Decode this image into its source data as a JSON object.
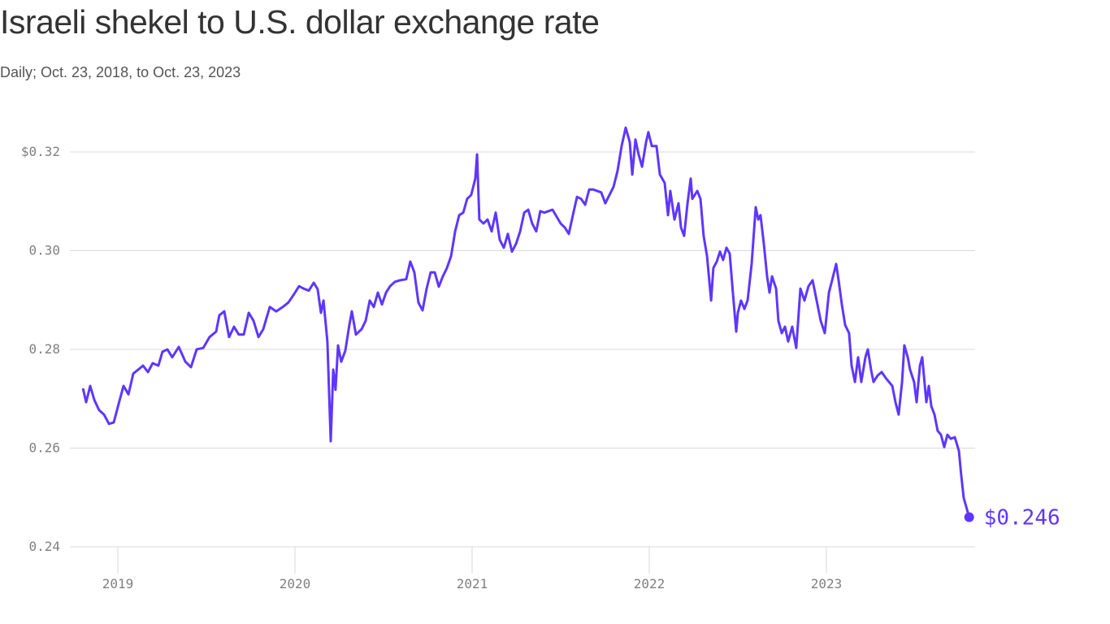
{
  "chart_data": {
    "type": "line",
    "title": "Israeli shekel to U.S. dollar exchange rate",
    "subtitle": "Daily; Oct. 23, 2018, to Oct. 23, 2023",
    "xlabel": "",
    "ylabel": "",
    "xlim": [
      2018.803,
      2023.806
    ],
    "ylim": [
      0.24,
      0.325
    ],
    "grid": true,
    "x_ticks": [
      {
        "value": 2019,
        "label": "2019"
      },
      {
        "value": 2020,
        "label": "2020"
      },
      {
        "value": 2021,
        "label": "2021"
      },
      {
        "value": 2022,
        "label": "2022"
      },
      {
        "value": 2023,
        "label": "2023"
      }
    ],
    "y_ticks": [
      {
        "value": 0.24,
        "label": "0.24"
      },
      {
        "value": 0.26,
        "label": "0.26"
      },
      {
        "value": 0.28,
        "label": "0.28"
      },
      {
        "value": 0.3,
        "label": "0.30"
      },
      {
        "value": 0.32,
        "label": "$0.32"
      }
    ],
    "line_color": "#5f36ff",
    "end_label": "$0.246",
    "series": [
      {
        "values": [
          [
            2018.803,
            0.2721
          ],
          [
            2018.821,
            0.2693
          ],
          [
            2018.844,
            0.2726
          ],
          [
            2018.867,
            0.2698
          ],
          [
            2018.894,
            0.2677
          ],
          [
            2018.922,
            0.2668
          ],
          [
            2018.95,
            0.2649
          ],
          [
            2018.977,
            0.2652
          ],
          [
            2019.005,
            0.269
          ],
          [
            2019.032,
            0.2726
          ],
          [
            2019.06,
            0.2709
          ],
          [
            2019.087,
            0.2751
          ],
          [
            2019.115,
            0.2759
          ],
          [
            2019.142,
            0.2767
          ],
          [
            2019.17,
            0.2754
          ],
          [
            2019.197,
            0.2772
          ],
          [
            2019.229,
            0.2767
          ],
          [
            2019.252,
            0.2795
          ],
          [
            2019.28,
            0.28
          ],
          [
            2019.307,
            0.2784
          ],
          [
            2019.344,
            0.2805
          ],
          [
            2019.381,
            0.2775
          ],
          [
            2019.413,
            0.2764
          ],
          [
            2019.445,
            0.28
          ],
          [
            2019.482,
            0.2803
          ],
          [
            2019.518,
            0.2825
          ],
          [
            2019.555,
            0.2836
          ],
          [
            2019.573,
            0.2869
          ],
          [
            2019.601,
            0.2877
          ],
          [
            2019.628,
            0.2825
          ],
          [
            2019.656,
            0.2846
          ],
          [
            2019.683,
            0.283
          ],
          [
            2019.711,
            0.283
          ],
          [
            2019.739,
            0.2874
          ],
          [
            2019.766,
            0.2858
          ],
          [
            2019.794,
            0.2825
          ],
          [
            2019.821,
            0.2841
          ],
          [
            2019.858,
            0.2886
          ],
          [
            2019.894,
            0.2877
          ],
          [
            2019.931,
            0.2886
          ],
          [
            2019.963,
            0.2895
          ],
          [
            2019.995,
            0.2912
          ],
          [
            2020.023,
            0.2928
          ],
          [
            2020.05,
            0.2923
          ],
          [
            2020.078,
            0.2919
          ],
          [
            2020.106,
            0.2935
          ],
          [
            2020.128,
            0.2922
          ],
          [
            2020.147,
            0.2874
          ],
          [
            2020.161,
            0.2899
          ],
          [
            2020.183,
            0.2816
          ],
          [
            2020.202,
            0.2614
          ],
          [
            2020.216,
            0.2759
          ],
          [
            2020.229,
            0.2718
          ],
          [
            2020.243,
            0.2808
          ],
          [
            2020.261,
            0.2775
          ],
          [
            2020.284,
            0.2797
          ],
          [
            2020.307,
            0.2849
          ],
          [
            2020.321,
            0.2877
          ],
          [
            2020.344,
            0.283
          ],
          [
            2020.376,
            0.2841
          ],
          [
            2020.399,
            0.2858
          ],
          [
            2020.422,
            0.2899
          ],
          [
            2020.445,
            0.2886
          ],
          [
            2020.468,
            0.2915
          ],
          [
            2020.491,
            0.2891
          ],
          [
            2020.514,
            0.2915
          ],
          [
            2020.537,
            0.2928
          ],
          [
            2020.564,
            0.2937
          ],
          [
            2020.592,
            0.294
          ],
          [
            2020.628,
            0.2942
          ],
          [
            2020.651,
            0.2978
          ],
          [
            2020.674,
            0.2956
          ],
          [
            2020.697,
            0.2895
          ],
          [
            2020.72,
            0.2879
          ],
          [
            2020.743,
            0.2923
          ],
          [
            2020.766,
            0.2956
          ],
          [
            2020.789,
            0.2956
          ],
          [
            2020.812,
            0.2927
          ],
          [
            2020.835,
            0.2948
          ],
          [
            2020.858,
            0.2965
          ],
          [
            2020.881,
            0.2989
          ],
          [
            2020.904,
            0.3039
          ],
          [
            2020.927,
            0.3072
          ],
          [
            2020.95,
            0.3077
          ],
          [
            2020.972,
            0.3105
          ],
          [
            2020.995,
            0.3113
          ],
          [
            2021.018,
            0.3146
          ],
          [
            2021.028,
            0.3195
          ],
          [
            2021.041,
            0.3063
          ],
          [
            2021.064,
            0.3055
          ],
          [
            2021.087,
            0.3063
          ],
          [
            2021.11,
            0.3039
          ],
          [
            2021.133,
            0.3077
          ],
          [
            2021.156,
            0.3022
          ],
          [
            2021.179,
            0.3006
          ],
          [
            2021.202,
            0.3034
          ],
          [
            2021.225,
            0.2998
          ],
          [
            2021.248,
            0.3014
          ],
          [
            2021.271,
            0.3039
          ],
          [
            2021.294,
            0.3077
          ],
          [
            2021.317,
            0.3083
          ],
          [
            2021.339,
            0.3055
          ],
          [
            2021.362,
            0.3039
          ],
          [
            2021.385,
            0.308
          ],
          [
            2021.408,
            0.3077
          ],
          [
            2021.454,
            0.3083
          ],
          [
            2021.5,
            0.3055
          ],
          [
            2021.523,
            0.3047
          ],
          [
            2021.546,
            0.3034
          ],
          [
            2021.569,
            0.3072
          ],
          [
            2021.592,
            0.3109
          ],
          [
            2021.615,
            0.3105
          ],
          [
            2021.638,
            0.3093
          ],
          [
            2021.661,
            0.3124
          ],
          [
            2021.683,
            0.3124
          ],
          [
            2021.729,
            0.3118
          ],
          [
            2021.752,
            0.3096
          ],
          [
            2021.775,
            0.3113
          ],
          [
            2021.798,
            0.3129
          ],
          [
            2021.821,
            0.3162
          ],
          [
            2021.844,
            0.3212
          ],
          [
            2021.867,
            0.3249
          ],
          [
            2021.89,
            0.322
          ],
          [
            2021.904,
            0.3154
          ],
          [
            2021.922,
            0.3225
          ],
          [
            2021.94,
            0.3195
          ],
          [
            2021.959,
            0.317
          ],
          [
            2021.982,
            0.322
          ],
          [
            2021.995,
            0.324
          ],
          [
            2022.014,
            0.3212
          ],
          [
            2022.041,
            0.3212
          ],
          [
            2022.06,
            0.3154
          ],
          [
            2022.087,
            0.3137
          ],
          [
            2022.106,
            0.3072
          ],
          [
            2022.119,
            0.3121
          ],
          [
            2022.142,
            0.3063
          ],
          [
            2022.165,
            0.3096
          ],
          [
            2022.179,
            0.3047
          ],
          [
            2022.197,
            0.303
          ],
          [
            2022.216,
            0.3096
          ],
          [
            2022.234,
            0.3146
          ],
          [
            2022.243,
            0.3105
          ],
          [
            2022.271,
            0.3121
          ],
          [
            2022.289,
            0.3105
          ],
          [
            2022.307,
            0.303
          ],
          [
            2022.326,
            0.2989
          ],
          [
            2022.349,
            0.2899
          ],
          [
            2022.362,
            0.2965
          ],
          [
            2022.381,
            0.2978
          ],
          [
            2022.399,
            0.2998
          ],
          [
            2022.417,
            0.2981
          ],
          [
            2022.436,
            0.3006
          ],
          [
            2022.454,
            0.2994
          ],
          [
            2022.472,
            0.2915
          ],
          [
            2022.491,
            0.2836
          ],
          [
            2022.5,
            0.2874
          ],
          [
            2022.518,
            0.2899
          ],
          [
            2022.537,
            0.2882
          ],
          [
            2022.555,
            0.2899
          ],
          [
            2022.578,
            0.2973
          ],
          [
            2022.601,
            0.3088
          ],
          [
            2022.615,
            0.3063
          ],
          [
            2022.628,
            0.3072
          ],
          [
            2022.647,
            0.3014
          ],
          [
            2022.665,
            0.2948
          ],
          [
            2022.679,
            0.2915
          ],
          [
            2022.693,
            0.2948
          ],
          [
            2022.716,
            0.2923
          ],
          [
            2022.729,
            0.2858
          ],
          [
            2022.748,
            0.2833
          ],
          [
            2022.766,
            0.2846
          ],
          [
            2022.784,
            0.2816
          ],
          [
            2022.807,
            0.2846
          ],
          [
            2022.83,
            0.2803
          ],
          [
            2022.853,
            0.2923
          ],
          [
            2022.876,
            0.2899
          ],
          [
            2022.899,
            0.2928
          ],
          [
            2022.922,
            0.294
          ],
          [
            2022.945,
            0.2899
          ],
          [
            2022.968,
            0.2858
          ],
          [
            2022.991,
            0.2833
          ],
          [
            2023.014,
            0.2915
          ],
          [
            2023.032,
            0.294
          ],
          [
            2023.055,
            0.2973
          ],
          [
            2023.069,
            0.294
          ],
          [
            2023.087,
            0.2891
          ],
          [
            2023.106,
            0.2849
          ],
          [
            2023.128,
            0.2833
          ],
          [
            2023.142,
            0.2767
          ],
          [
            2023.161,
            0.2734
          ],
          [
            2023.179,
            0.2784
          ],
          [
            2023.197,
            0.2734
          ],
          [
            2023.22,
            0.2784
          ],
          [
            2023.234,
            0.28
          ],
          [
            2023.252,
            0.2759
          ],
          [
            2023.266,
            0.2734
          ],
          [
            2023.289,
            0.2747
          ],
          [
            2023.312,
            0.2754
          ],
          [
            2023.335,
            0.2742
          ],
          [
            2023.353,
            0.2734
          ],
          [
            2023.372,
            0.2726
          ],
          [
            2023.39,
            0.2693
          ],
          [
            2023.408,
            0.2668
          ],
          [
            2023.427,
            0.2734
          ],
          [
            2023.44,
            0.2808
          ],
          [
            2023.459,
            0.2784
          ],
          [
            2023.472,
            0.2759
          ],
          [
            2023.495,
            0.2734
          ],
          [
            2023.509,
            0.2693
          ],
          [
            2023.528,
            0.2767
          ],
          [
            2023.541,
            0.2784
          ],
          [
            2023.564,
            0.2693
          ],
          [
            2023.578,
            0.2726
          ],
          [
            2023.592,
            0.2685
          ],
          [
            2023.61,
            0.2668
          ],
          [
            2023.628,
            0.2635
          ],
          [
            2023.647,
            0.2627
          ],
          [
            2023.665,
            0.2602
          ],
          [
            2023.683,
            0.2627
          ],
          [
            2023.702,
            0.2619
          ],
          [
            2023.725,
            0.2622
          ],
          [
            2023.748,
            0.2594
          ],
          [
            2023.761,
            0.2545
          ],
          [
            2023.775,
            0.2499
          ],
          [
            2023.806,
            0.246
          ]
        ]
      }
    ]
  }
}
